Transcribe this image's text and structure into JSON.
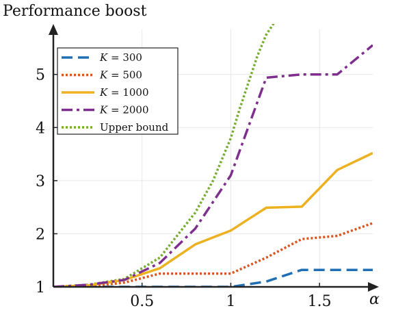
{
  "chart_data": {
    "type": "line",
    "title": "",
    "ylabel": "Performance boost",
    "xlabel": "α",
    "xlim": [
      0,
      1.8
    ],
    "ylim": [
      1,
      5.95
    ],
    "xticks": [
      0.5,
      1,
      1.5
    ],
    "xtick_labels": [
      "0.5",
      "1",
      "1.5"
    ],
    "yticks": [
      1,
      2,
      3,
      4,
      5
    ],
    "ytick_labels": [
      "1",
      "2",
      "3",
      "4",
      "5"
    ],
    "grid": true,
    "legend_position": "top-left",
    "series": [
      {
        "name": "K = 300",
        "legend_var": "K",
        "legend_value": "= 300",
        "color": "#1f6fb4",
        "style": "dashed",
        "x": [
          0,
          0.2,
          0.4,
          0.6,
          0.8,
          1.0,
          1.2,
          1.4,
          1.6,
          1.8
        ],
        "y": [
          1.0,
          1.0,
          1.0,
          1.0,
          1.0,
          1.0,
          1.1,
          1.32,
          1.32,
          1.32
        ]
      },
      {
        "name": "K = 500",
        "legend_var": "K",
        "legend_value": "= 500",
        "color": "#d9541e",
        "style": "dotted",
        "x": [
          0,
          0.2,
          0.4,
          0.6,
          0.8,
          1.0,
          1.2,
          1.4,
          1.6,
          1.8
        ],
        "y": [
          1.0,
          1.01,
          1.08,
          1.25,
          1.25,
          1.25,
          1.55,
          1.9,
          1.96,
          2.2
        ]
      },
      {
        "name": "K = 1000",
        "legend_var": "K",
        "legend_value": "= 1000",
        "color": "#edb120",
        "style": "solid",
        "x": [
          0,
          0.2,
          0.4,
          0.6,
          0.8,
          1.0,
          1.2,
          1.4,
          1.6,
          1.8
        ],
        "y": [
          1.0,
          1.03,
          1.13,
          1.35,
          1.8,
          2.06,
          2.49,
          2.51,
          3.2,
          3.52
        ]
      },
      {
        "name": "K = 2000",
        "legend_var": "K",
        "legend_value": "= 2000",
        "color": "#7e2f8e",
        "style": "dashdot",
        "x": [
          0,
          0.2,
          0.4,
          0.6,
          0.8,
          1.0,
          1.2,
          1.4,
          1.6,
          1.8
        ],
        "y": [
          1.0,
          1.04,
          1.13,
          1.45,
          2.1,
          3.1,
          4.94,
          5.0,
          5.0,
          5.55
        ]
      },
      {
        "name": "Upper bound",
        "legend_var": "",
        "legend_value": "Upper bound",
        "color": "#77ac30",
        "style": "dotted",
        "x": [
          0,
          0.2,
          0.4,
          0.6,
          0.8,
          0.9,
          1.0,
          1.05,
          1.1,
          1.15,
          1.2,
          1.25
        ],
        "y": [
          1.0,
          1.04,
          1.15,
          1.55,
          2.4,
          3.0,
          3.8,
          4.35,
          4.85,
          5.35,
          5.75,
          6.0
        ]
      }
    ]
  }
}
